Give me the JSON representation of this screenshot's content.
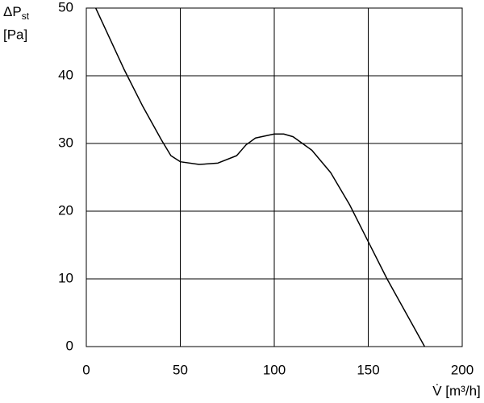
{
  "chart_data": {
    "type": "line",
    "ylabel": {
      "symbol": "ΔP",
      "subscript": "st",
      "unit": "[Pa]"
    },
    "xlabel": "V̇ [m³/h]",
    "x": [
      5,
      10,
      20,
      30,
      40,
      45,
      50,
      60,
      70,
      80,
      85,
      90,
      100,
      105,
      110,
      120,
      130,
      140,
      150,
      160,
      170,
      180
    ],
    "series": [
      {
        "color": "#000000",
        "values": [
          50,
          47,
          41,
          35.5,
          30.5,
          28.2,
          27.3,
          26.9,
          27.1,
          28.2,
          29.8,
          30.8,
          31.4,
          31.4,
          31,
          29,
          25.7,
          21,
          15.5,
          10,
          5,
          0
        ]
      }
    ],
    "xlim": [
      0,
      200
    ],
    "xticks": [
      0,
      50,
      100,
      150,
      200
    ],
    "ylim": [
      0,
      50
    ],
    "yticks": [
      0,
      10,
      20,
      30,
      40,
      50
    ],
    "grid": true
  }
}
